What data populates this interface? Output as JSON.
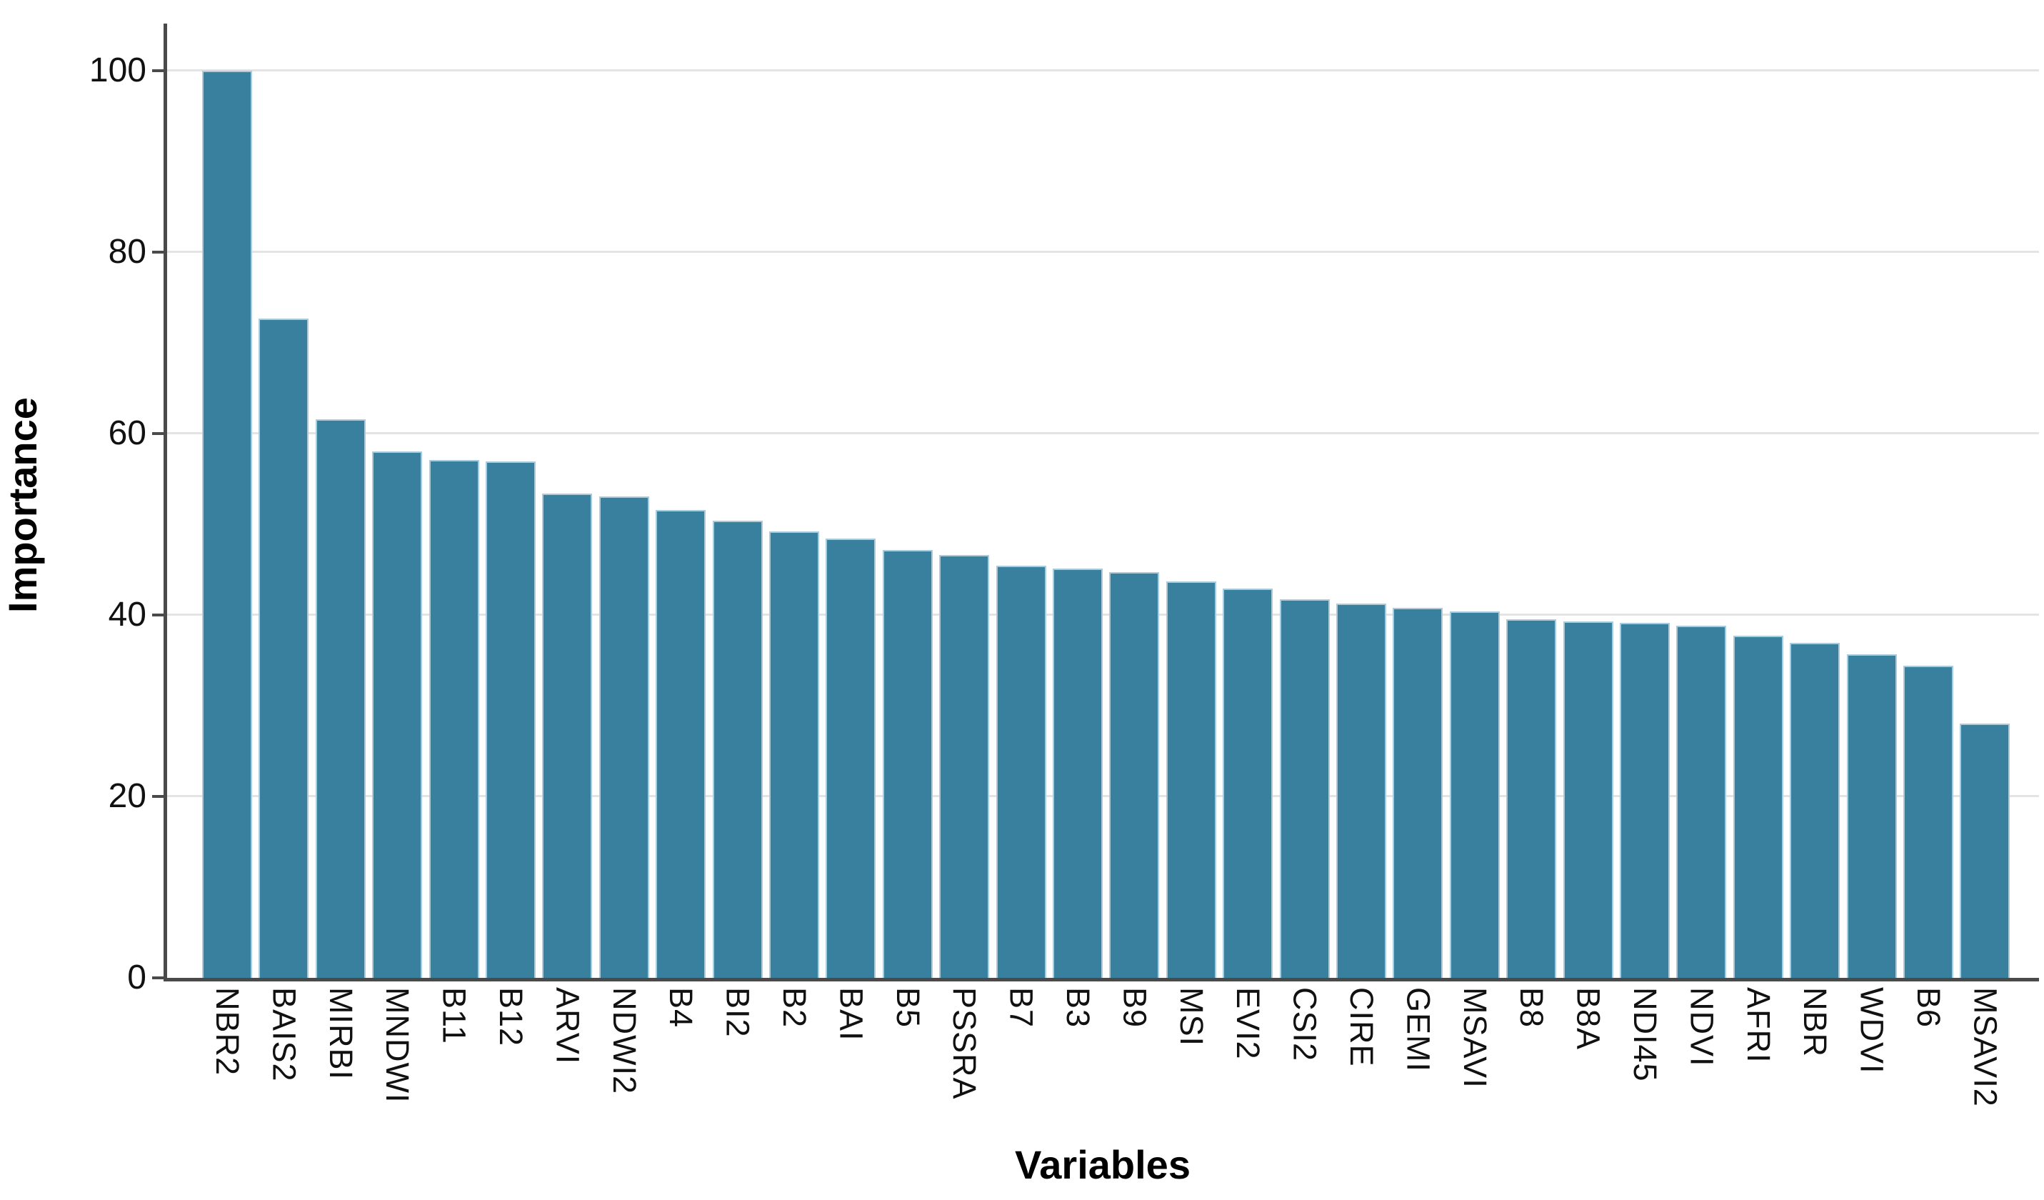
{
  "chart_data": {
    "type": "bar",
    "title": "",
    "xlabel": "Variables",
    "ylabel": "Importance",
    "categories": [
      "NBR2",
      "BAIS2",
      "MIRBI",
      "MNDWI",
      "B11",
      "B12",
      "ARVI",
      "NDWI2",
      "B4",
      "BI2",
      "B2",
      "BAI",
      "B5",
      "PSSRA",
      "B7",
      "B3",
      "B9",
      "MSI",
      "EVI2",
      "CSI2",
      "CIRE",
      "GEMI",
      "MSAVI",
      "B8",
      "B8A",
      "NDI45",
      "NDVI",
      "AFRI",
      "NBR",
      "WDVI",
      "B6",
      "MSAVI2"
    ],
    "values": [
      100,
      72.7,
      61.6,
      58.0,
      57.1,
      56.9,
      53.4,
      53.1,
      51.6,
      50.4,
      49.2,
      48.4,
      47.2,
      46.6,
      45.4,
      45.1,
      44.7,
      43.7,
      42.9,
      41.7,
      41.3,
      40.8,
      40.4,
      39.5,
      39.3,
      39.1,
      38.8,
      37.7,
      36.9,
      35.7,
      34.4,
      28.0
    ],
    "ylim": [
      0,
      105
    ],
    "yticks": [
      0,
      20,
      40,
      60,
      80,
      100
    ],
    "grid": "horizontal-major",
    "legend": "none",
    "colors": {
      "bar_fill": "#38809e",
      "bar_edge": "#a9cbdb",
      "gridline": "#e4e4e4",
      "axis_line": "#4a4a4a",
      "tick_text": "#111111",
      "title_text": "#000000",
      "background": "#ffffff"
    }
  }
}
